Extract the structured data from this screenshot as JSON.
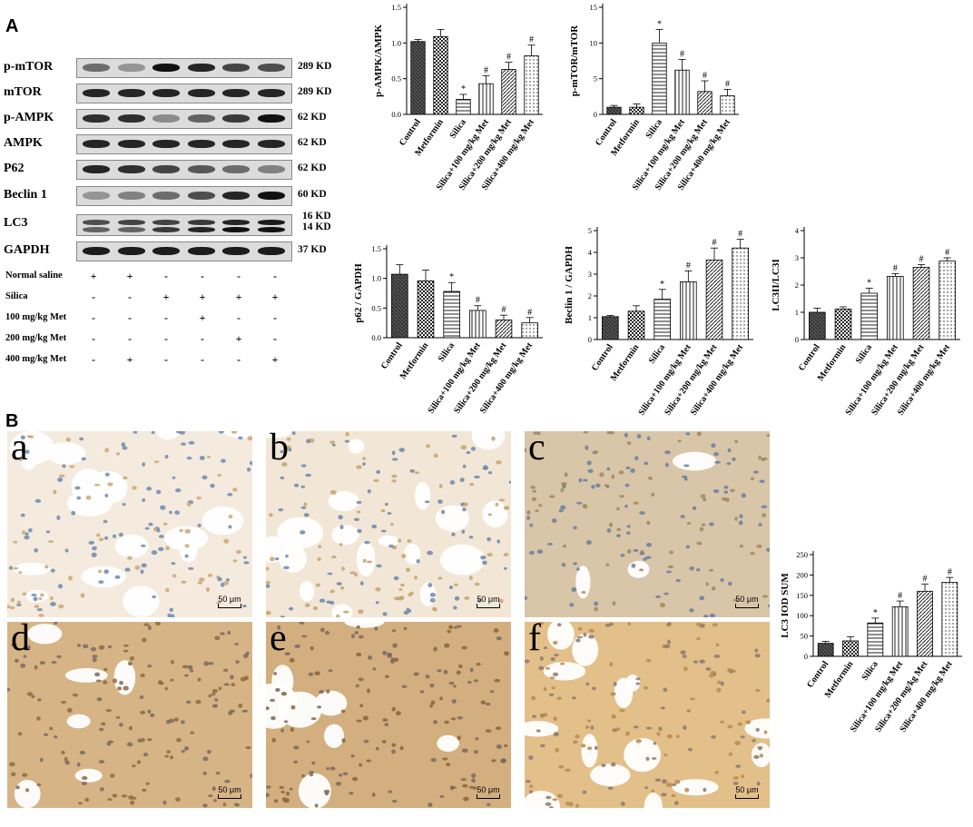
{
  "panels": {
    "a": "A",
    "b": "B"
  },
  "western_blot": {
    "rows": [
      {
        "label": "p-mTOR",
        "kd": "289 KD"
      },
      {
        "label": "mTOR",
        "kd": "289 KD"
      },
      {
        "label": "p-AMPK",
        "kd": "62 KD"
      },
      {
        "label": "AMPK",
        "kd": "62 KD"
      },
      {
        "label": "P62",
        "kd": "62 KD"
      },
      {
        "label": "Beclin 1",
        "kd": "60 KD"
      },
      {
        "label": "LC3",
        "kd": "16 KD",
        "kd2": "14 KD"
      },
      {
        "label": "GAPDH",
        "kd": "37 KD"
      }
    ],
    "treatments": [
      {
        "label": "Normal saline",
        "signs": [
          "+",
          "+",
          "-",
          "-",
          "-",
          "-"
        ]
      },
      {
        "label": "Silica",
        "signs": [
          "-",
          "-",
          "+",
          "+",
          "+",
          "+"
        ]
      },
      {
        "label": "100 mg/kg Met",
        "signs": [
          "-",
          "-",
          "-",
          "+",
          "-",
          "-"
        ]
      },
      {
        "label": "200 mg/kg Met",
        "signs": [
          "-",
          "-",
          "-",
          "-",
          "+",
          "-"
        ]
      },
      {
        "label": "400 mg/kg Met",
        "signs": [
          "-",
          "+",
          "-",
          "-",
          "-",
          "+"
        ]
      }
    ]
  },
  "chart_data": [
    {
      "type": "bar",
      "ylabel": "p-AMPK/AMPK",
      "ylim": [
        0,
        1.5
      ],
      "yticks": [
        0,
        0.5,
        1.0,
        1.5
      ],
      "categories": [
        "Control",
        "Metformin",
        "Silica",
        "Silica+100 mg/kg Met",
        "Silica+200 mg/kg Met",
        "Silica+400 mg/kg Met"
      ],
      "values": [
        1.02,
        1.09,
        0.21,
        0.43,
        0.63,
        0.82
      ],
      "errors": [
        0.03,
        0.1,
        0.07,
        0.11,
        0.1,
        0.15
      ],
      "marks": [
        "",
        "",
        "*",
        "#",
        "#",
        "#"
      ]
    },
    {
      "type": "bar",
      "ylabel": "p-mTOR/mTOR",
      "ylim": [
        0,
        15
      ],
      "yticks": [
        0,
        5,
        10,
        15
      ],
      "categories": [
        "Control",
        "Metformin",
        "Silica",
        "Silica+100 mg/kg Met",
        "Silica+200 mg/kg Met",
        "Silica+400 mg/kg Met"
      ],
      "values": [
        1.0,
        1.0,
        10.0,
        6.2,
        3.2,
        2.6
      ],
      "errors": [
        0.25,
        0.45,
        1.9,
        1.5,
        1.5,
        0.9
      ],
      "marks": [
        "",
        "",
        "*",
        "#",
        "#",
        "#"
      ]
    },
    {
      "type": "bar",
      "ylabel": "p62 / GAPDH",
      "ylim": [
        0,
        1.5
      ],
      "yticks": [
        0,
        0.5,
        1.0,
        1.5
      ],
      "categories": [
        "Control",
        "Metformin",
        "Silica",
        "Silica+100 mg/kg Met",
        "Silica+200 mg/kg Met",
        "Silica+400 mg/kg Met"
      ],
      "values": [
        1.07,
        0.96,
        0.78,
        0.46,
        0.3,
        0.25
      ],
      "errors": [
        0.16,
        0.18,
        0.15,
        0.08,
        0.08,
        0.09
      ],
      "marks": [
        "",
        "",
        "*",
        "#",
        "#",
        "#"
      ]
    },
    {
      "type": "bar",
      "ylabel": "Beclin 1 / GAPDH",
      "ylim": [
        0,
        5
      ],
      "yticks": [
        0,
        1,
        2,
        3,
        4,
        5
      ],
      "categories": [
        "Control",
        "Metformin",
        "Silica",
        "Silica+100 mg/kg Met",
        "Silica+200 mg/kg Met",
        "Silica+400 mg/kg Met"
      ],
      "values": [
        1.05,
        1.3,
        1.85,
        2.65,
        3.65,
        4.2
      ],
      "errors": [
        0.05,
        0.25,
        0.45,
        0.5,
        0.55,
        0.4
      ],
      "marks": [
        "",
        "",
        "*",
        "#",
        "#",
        "#"
      ]
    },
    {
      "type": "bar",
      "ylabel": "LC3II/LC3I",
      "ylim": [
        0,
        4
      ],
      "yticks": [
        0,
        1,
        2,
        3,
        4
      ],
      "categories": [
        "Control",
        "Metformin",
        "Silica",
        "Silica+100 mg/kg Met",
        "Silica+200 mg/kg Met",
        "Silica+400 mg/kg Met"
      ],
      "values": [
        1.0,
        1.12,
        1.7,
        2.32,
        2.65,
        2.88
      ],
      "errors": [
        0.15,
        0.08,
        0.18,
        0.1,
        0.1,
        0.12
      ],
      "marks": [
        "",
        "",
        "*",
        "#",
        "#",
        "#"
      ]
    },
    {
      "type": "bar",
      "ylabel": "LC3  IOD SUM",
      "ylim": [
        0,
        250
      ],
      "yticks": [
        0,
        50,
        100,
        150,
        200,
        250
      ],
      "categories": [
        "Control",
        "Metformin",
        "Silica",
        "Silica+100 mg/kg Met",
        "Silica+200 mg/kg Met",
        "Silica+400 mg/kg Met"
      ],
      "values": [
        32,
        38,
        82,
        122,
        160,
        182
      ],
      "errors": [
        5,
        10,
        12,
        14,
        18,
        12
      ],
      "marks": [
        "",
        "",
        "*",
        "#",
        "#",
        "#"
      ]
    }
  ],
  "micrographs": [
    {
      "letter": "a",
      "scale": "50 μm"
    },
    {
      "letter": "b",
      "scale": "50 μm"
    },
    {
      "letter": "c",
      "scale": "50 μm"
    },
    {
      "letter": "d",
      "scale": "50 μm"
    },
    {
      "letter": "e",
      "scale": "50 μm"
    },
    {
      "letter": "f",
      "scale": "50 μm"
    }
  ]
}
